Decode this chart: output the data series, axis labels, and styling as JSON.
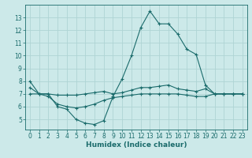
{
  "xlabel": "Humidex (Indice chaleur)",
  "bg_color": "#cce9e9",
  "grid_color": "#afd4d4",
  "line_color": "#1a6b6b",
  "hours": [
    0,
    1,
    2,
    3,
    4,
    5,
    6,
    7,
    8,
    9,
    10,
    11,
    12,
    13,
    14,
    15,
    16,
    17,
    18,
    19,
    20,
    21,
    22,
    23
  ],
  "line_max": [
    8.0,
    7.0,
    7.0,
    6.0,
    5.8,
    5.0,
    4.7,
    4.6,
    4.9,
    6.8,
    8.2,
    10.0,
    12.2,
    13.5,
    12.5,
    12.5,
    11.7,
    10.5,
    10.1,
    7.7,
    7.0,
    7.0,
    7.0,
    7.0
  ],
  "line_min": [
    7.0,
    7.0,
    6.8,
    6.2,
    6.0,
    5.9,
    6.0,
    6.2,
    6.5,
    6.7,
    6.8,
    6.9,
    7.0,
    7.0,
    7.0,
    7.0,
    7.0,
    6.9,
    6.8,
    6.8,
    7.0,
    7.0,
    7.0,
    7.0
  ],
  "line_avg": [
    7.5,
    7.0,
    7.0,
    6.9,
    6.9,
    6.9,
    7.0,
    7.1,
    7.2,
    7.0,
    7.1,
    7.3,
    7.5,
    7.5,
    7.6,
    7.7,
    7.4,
    7.3,
    7.2,
    7.4,
    7.0,
    7.0,
    7.0,
    7.0
  ],
  "ylim": [
    4.2,
    14.0
  ],
  "yticks": [
    5,
    6,
    7,
    8,
    9,
    10,
    11,
    12,
    13
  ],
  "xticks": [
    0,
    1,
    2,
    3,
    4,
    5,
    6,
    7,
    8,
    9,
    10,
    11,
    12,
    13,
    14,
    15,
    16,
    17,
    18,
    19,
    20,
    21,
    22,
    23
  ],
  "tick_fontsize": 5.5,
  "xlabel_fontsize": 6.5
}
